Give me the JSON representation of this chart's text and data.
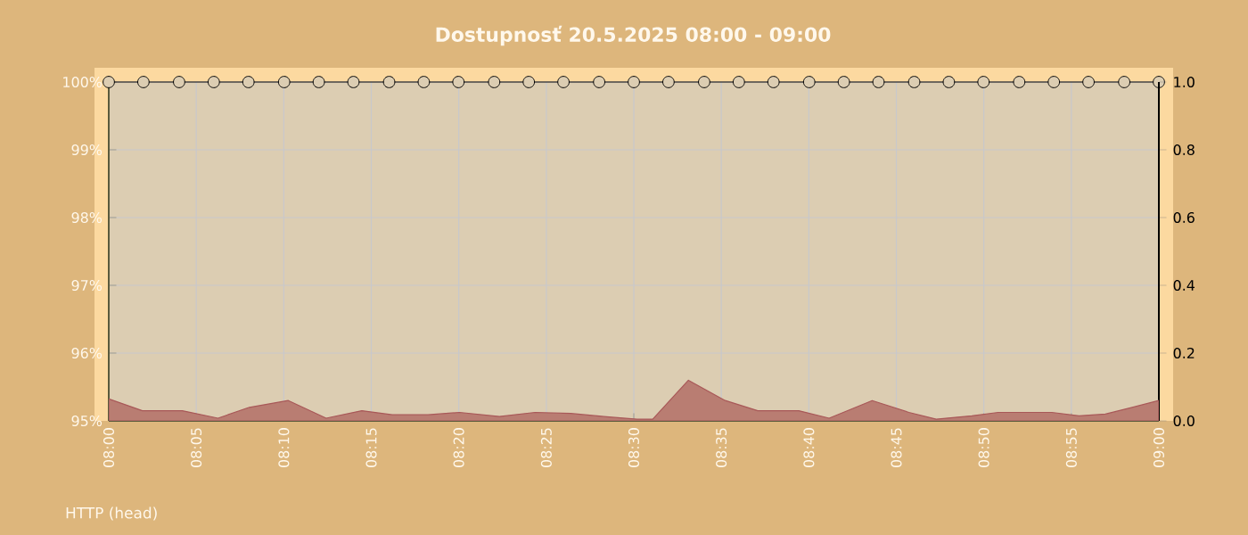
{
  "chart_data": {
    "type": "line",
    "title": "Dostupnosť 20.5.2025 08:00 - 09:00",
    "annotations": [
      "HTTP (head)"
    ],
    "xlim": [
      8,
      9
    ],
    "xticks": [
      {
        "value": 8,
        "label": "08:00"
      },
      {
        "value": 8.0833,
        "label": "08:05"
      },
      {
        "value": 8.1667,
        "label": "08:10"
      },
      {
        "value": 8.25,
        "label": "08:15"
      },
      {
        "value": 8.3333,
        "label": "08:20"
      },
      {
        "value": 8.4167,
        "label": "08:25"
      },
      {
        "value": 8.5,
        "label": "08:30"
      },
      {
        "value": 8.5833,
        "label": "08:35"
      },
      {
        "value": 8.6667,
        "label": "08:40"
      },
      {
        "value": 8.75,
        "label": "08:45"
      },
      {
        "value": 8.8333,
        "label": "08:50"
      },
      {
        "value": 8.9167,
        "label": "08:55"
      },
      {
        "value": 9,
        "label": "09:00"
      }
    ],
    "ylim": [
      95,
      100
    ],
    "yticks": [
      {
        "value": 95,
        "label": "95%"
      },
      {
        "value": 96,
        "label": "96%"
      },
      {
        "value": 97,
        "label": "97%"
      },
      {
        "value": 98,
        "label": "98%"
      },
      {
        "value": 99,
        "label": "99%"
      },
      {
        "value": 100,
        "label": "100%"
      }
    ],
    "y2lim": [
      0,
      1
    ],
    "y2ticks": [
      {
        "value": 0,
        "label": "0.0"
      },
      {
        "value": 0.2,
        "label": "0.2"
      },
      {
        "value": 0.4,
        "label": "0.4"
      },
      {
        "value": 0.6,
        "label": "0.6"
      },
      {
        "value": 0.8,
        "label": "0.8"
      },
      {
        "value": 1,
        "label": "1.0"
      }
    ],
    "grid": true,
    "marker": "circle",
    "series": [
      {
        "color": "#000000",
        "x": [
          8,
          8.033,
          8.067,
          8.1,
          8.133,
          8.167,
          8.2,
          8.233,
          8.267,
          8.3,
          8.333,
          8.367,
          8.4,
          8.433,
          8.467,
          8.5,
          8.533,
          8.567,
          8.6,
          8.633,
          8.667,
          8.7,
          8.733,
          8.767,
          8.8,
          8.833,
          8.867,
          8.9,
          8.933,
          8.967,
          9
        ],
        "values": [
          100,
          100,
          100,
          100,
          100,
          100,
          100,
          100,
          100,
          100,
          100,
          100,
          100,
          100,
          100,
          100,
          100,
          100,
          100,
          100,
          100,
          100,
          100,
          100,
          100,
          100,
          100,
          100,
          100,
          100,
          100
        ]
      },
      {
        "type": "area",
        "axis": "y2",
        "marker": "none",
        "color": "#b97d72",
        "x": [
          8,
          8.032,
          8.07,
          8.104,
          8.134,
          8.171,
          8.207,
          8.241,
          8.27,
          8.304,
          8.334,
          8.372,
          8.406,
          8.44,
          8.474,
          8.503,
          8.518,
          8.552,
          8.587,
          8.618,
          8.657,
          8.686,
          8.727,
          8.762,
          8.788,
          8.822,
          8.847,
          8.898,
          8.924,
          8.949,
          9
        ],
        "values": [
          0.065,
          0.03,
          0.03,
          0.008,
          0.04,
          0.06,
          0.008,
          0.03,
          0.018,
          0.018,
          0.025,
          0.013,
          0.025,
          0.022,
          0.012,
          0.005,
          0.005,
          0.12,
          0.06,
          0.03,
          0.03,
          0.008,
          0.06,
          0.025,
          0.005,
          0.015,
          0.025,
          0.025,
          0.015,
          0.02,
          0.06
        ]
      }
    ]
  }
}
